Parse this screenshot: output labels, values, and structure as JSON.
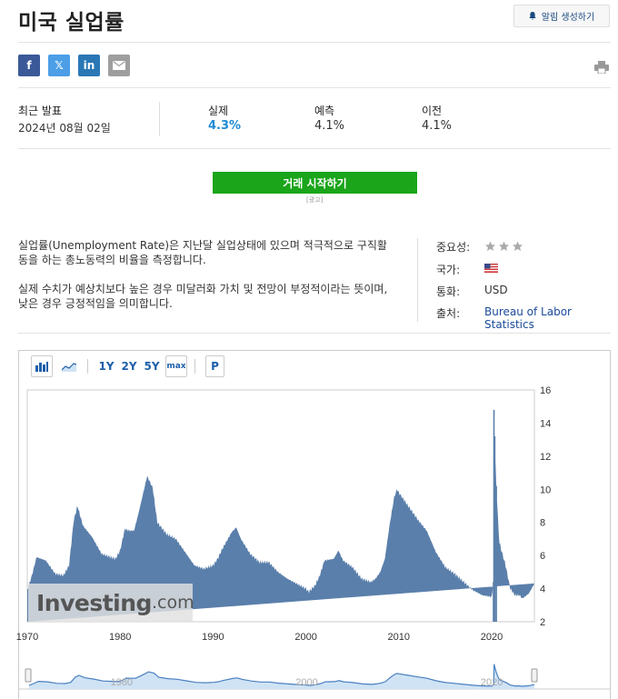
{
  "header": {
    "title": "미국 실업률",
    "alert_button": "알림 생성하기"
  },
  "share": {
    "facebook": "f",
    "twitter": "𝕏",
    "linkedin": "in"
  },
  "release": {
    "latest_label": "최근 발표",
    "latest_date": "2024년 08월 02일",
    "actual_label": "실제",
    "actual_value": "4.3%",
    "forecast_label": "예측",
    "forecast_value": "4.1%",
    "previous_label": "이전",
    "previous_value": "4.1%"
  },
  "trade_button": "거래 시작하기",
  "ad_label": "[광고]",
  "description": {
    "para1": "실업률(Unemployment Rate)은 지난달 실업상태에 있으며 적극적으로 구직활동을 하는 총노동력의 비율을 측정합니다.",
    "para2": "실제 수치가 예상치보다 높은 경우 미달러화 가치 및 전망이 부정적이라는 뜻이며, 낮은 경우 긍정적임을 의미합니다."
  },
  "meta": {
    "importance_label": "중요성:",
    "importance_stars": 3,
    "country_label": "국가:",
    "country_icon": "us-flag-icon",
    "currency_label": "통화:",
    "currency_value": "USD",
    "source_label": "출처:",
    "source_value": "Bureau of Labor Statistics"
  },
  "toolbar": {
    "range_1y": "1Y",
    "range_2y": "2Y",
    "range_5y": "5Y",
    "range_max": "max",
    "p": "P"
  },
  "colors": {
    "area_fill": "#5a7fab",
    "nav_fill": "#cfe3f5",
    "nav_line": "#4a80c0",
    "actual": "#1e8bd6",
    "trade": "#1aa51a"
  },
  "watermark": {
    "brand": "Investing",
    "suffix": ".com"
  },
  "chart_data": {
    "type": "area",
    "x_ticks": [
      "1970",
      "1980",
      "1990",
      "2000",
      "2010",
      "2020"
    ],
    "y_ticks": [
      "16",
      "14",
      "12",
      "10",
      "8",
      "6",
      "4",
      "2"
    ],
    "ylim": [
      2,
      16
    ],
    "xlim": [
      1970,
      2024.6
    ],
    "nav_ticks": [
      "1980",
      "2000",
      "2020"
    ],
    "series": [
      {
        "x": [
          1970.0,
          1970.5,
          1971.0,
          1972.0,
          1973.0,
          1973.9,
          1974.5,
          1975.0,
          1975.4,
          1976.0,
          1977.0,
          1978.0,
          1979.0,
          1979.5,
          1980.0,
          1980.5,
          1981.0,
          1981.5,
          1982.0,
          1982.5,
          1982.9,
          1983.5,
          1984.0,
          1985.0,
          1986.0,
          1987.0,
          1988.0,
          1989.0,
          1990.0,
          1990.5,
          1991.0,
          1992.0,
          1992.5,
          1993.0,
          1994.0,
          1995.0,
          1996.0,
          1997.0,
          1998.0,
          1999.0,
          2000.0,
          2000.3,
          2001.0,
          2001.5,
          2002.0,
          2003.0,
          2003.5,
          2004.0,
          2005.0,
          2006.0,
          2007.0,
          2007.5,
          2008.0,
          2008.5,
          2009.0,
          2009.5,
          2009.8,
          2010.0,
          2011.0,
          2012.0,
          2013.0,
          2014.0,
          2015.0,
          2016.0,
          2017.0,
          2018.0,
          2019.0,
          2020.0,
          2020.2,
          2020.25,
          2020.33,
          2020.5,
          2020.8,
          2021.0,
          2021.5,
          2022.0,
          2022.5,
          2023.0,
          2023.3,
          2024.0,
          2024.6
        ],
        "y": [
          3.9,
          4.8,
          5.9,
          5.7,
          4.9,
          4.8,
          5.4,
          8.1,
          9.0,
          7.8,
          7.1,
          6.1,
          5.9,
          5.8,
          6.3,
          7.6,
          7.5,
          7.5,
          8.6,
          9.8,
          10.8,
          10.1,
          8.0,
          7.3,
          7.0,
          6.2,
          5.4,
          5.2,
          5.4,
          5.8,
          6.4,
          7.4,
          7.7,
          7.0,
          6.1,
          5.6,
          5.6,
          5.0,
          4.6,
          4.3,
          4.0,
          3.8,
          4.2,
          4.8,
          5.7,
          5.8,
          6.3,
          5.7,
          5.3,
          4.6,
          4.4,
          4.6,
          5.0,
          5.8,
          7.8,
          9.5,
          10.0,
          9.8,
          9.0,
          8.2,
          7.5,
          6.2,
          5.3,
          4.9,
          4.4,
          3.9,
          3.6,
          3.5,
          4.4,
          14.8,
          13.2,
          10.2,
          6.9,
          6.4,
          5.4,
          4.0,
          3.6,
          3.6,
          3.4,
          3.7,
          4.3
        ]
      }
    ]
  }
}
